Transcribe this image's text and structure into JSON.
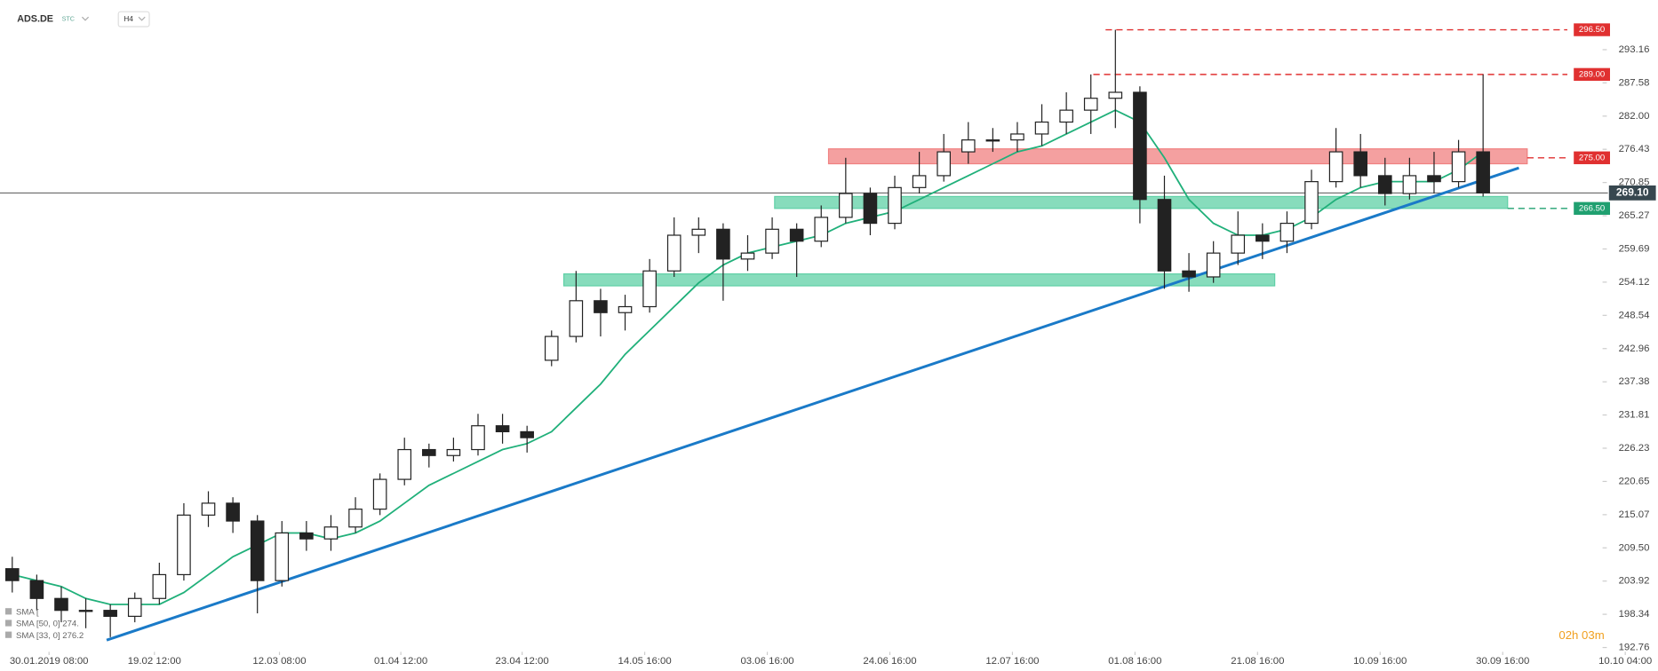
{
  "chart_data": {
    "type": "candlestick",
    "symbol": "ADS.DE",
    "market": "STC",
    "interval": "H4",
    "timer": "02h 03m",
    "indicators": [
      "SMA [",
      "SMA [50, 0] 274.",
      "SMA [33, 0] 276.2"
    ],
    "ylim": [
      191.5,
      301.5
    ],
    "xlim": [
      -0.5,
      66.7
    ],
    "yticks": [
      293.16,
      287.58,
      {
        "value": 282.0,
        "label": "282.00"
      },
      276.43,
      270.85,
      265.27,
      259.69,
      254.12,
      248.54,
      242.96,
      237.38,
      231.81,
      226.23,
      220.65,
      215.07,
      {
        "value": 209.5,
        "label": "209.50"
      },
      203.92,
      198.34,
      192.76
    ],
    "xticks": [
      {
        "value": 1.5,
        "label": "30.01.2019  08:00"
      },
      {
        "value": 5.8,
        "label": "19.02  12:00"
      },
      {
        "value": 10.9,
        "label": "12.03  08:00"
      },
      {
        "value": 15.85,
        "label": "01.04  12:00"
      },
      {
        "value": 20.8,
        "label": "23.04  12:00"
      },
      {
        "value": 25.8,
        "label": "14.05  16:00"
      },
      {
        "value": 30.8,
        "label": "03.06  16:00"
      },
      {
        "value": 35.8,
        "label": "24.06  16:00"
      },
      {
        "value": 40.8,
        "label": "12.07  16:00"
      },
      {
        "value": 45.8,
        "label": "01.08  16:00"
      },
      {
        "value": 50.8,
        "label": "21.08  16:00"
      },
      {
        "value": 55.8,
        "label": "10.09  16:00"
      },
      {
        "value": 60.8,
        "label": "30.09  16:00"
      },
      {
        "value": 65.8,
        "label": "10.10  04:00"
      }
    ],
    "candles": [
      [
        206,
        208,
        202,
        204
      ],
      [
        204,
        205,
        199,
        201
      ],
      [
        201,
        203,
        197,
        199
      ],
      [
        199,
        201,
        196,
        199
      ],
      [
        199,
        200,
        194.5,
        198
      ],
      [
        198,
        202,
        197,
        201
      ],
      [
        201,
        207,
        200,
        205
      ],
      [
        205,
        217,
        204,
        215
      ],
      [
        215,
        219,
        213,
        217
      ],
      [
        217,
        218,
        212,
        214
      ],
      [
        214,
        215,
        198.5,
        204
      ],
      [
        204,
        214,
        203,
        212
      ],
      [
        212,
        214,
        209,
        211
      ],
      [
        211,
        215,
        209,
        213
      ],
      [
        213,
        218,
        212,
        216
      ],
      [
        216,
        222,
        215,
        221
      ],
      [
        221,
        228,
        220,
        226
      ],
      [
        226,
        227,
        223,
        225
      ],
      [
        225,
        228,
        224,
        226
      ],
      [
        226,
        232,
        225,
        230
      ],
      [
        230,
        232,
        227,
        229
      ],
      [
        229,
        230,
        225.5,
        228
      ],
      [
        241,
        246,
        240,
        245
      ],
      [
        245,
        256,
        244,
        251
      ],
      [
        251,
        253,
        245,
        249
      ],
      [
        249,
        252,
        246,
        250
      ],
      [
        250,
        258,
        249,
        256
      ],
      [
        256,
        265,
        255,
        262
      ],
      [
        262,
        265,
        259,
        263
      ],
      [
        263,
        264,
        251,
        258
      ],
      [
        258,
        262,
        256,
        259
      ],
      [
        259,
        265,
        258,
        263
      ],
      [
        263,
        264,
        255,
        261
      ],
      [
        261,
        267,
        260,
        265
      ],
      [
        265,
        275,
        264,
        269
      ],
      [
        269,
        270,
        262,
        264
      ],
      [
        264,
        272,
        263,
        270
      ],
      [
        270,
        276,
        269,
        272
      ],
      [
        272,
        279,
        271,
        276
      ],
      [
        276,
        281,
        274,
        278
      ],
      [
        278,
        280,
        276,
        278
      ],
      [
        278,
        281,
        276,
        279
      ],
      [
        279,
        284,
        277,
        281
      ],
      [
        281,
        286,
        279,
        283
      ],
      [
        283,
        289,
        279,
        285
      ],
      [
        285,
        296.5,
        280,
        286
      ],
      [
        286,
        287,
        264,
        268
      ],
      [
        268,
        272,
        253,
        256
      ],
      [
        256,
        259,
        252.5,
        255
      ],
      [
        255,
        261,
        254,
        259
      ],
      [
        259,
        266,
        257,
        262
      ],
      [
        262,
        264,
        258,
        261
      ],
      [
        261,
        266,
        259,
        264
      ],
      [
        264,
        273,
        263,
        271
      ],
      [
        271,
        280,
        270,
        276
      ],
      [
        276,
        279,
        270,
        272
      ],
      [
        272,
        275,
        267,
        269
      ],
      [
        269,
        275,
        268,
        272
      ],
      [
        272,
        276,
        269,
        271
      ],
      [
        271,
        278,
        270,
        276
      ],
      [
        276,
        289,
        268.5,
        269.1
      ]
    ],
    "sma": {
      "color": "#20b07a",
      "values": [
        205,
        204,
        203,
        201,
        200,
        200,
        200,
        202,
        205,
        208,
        210,
        212,
        212,
        211,
        212,
        214,
        217,
        220,
        222,
        224,
        226,
        227,
        229,
        233,
        237,
        242,
        246,
        250,
        254,
        257,
        259,
        260,
        261,
        262,
        264,
        265,
        266,
        268,
        270,
        272,
        274,
        276,
        277,
        279,
        281,
        283,
        281,
        275,
        268,
        264,
        262,
        262,
        263,
        265,
        268,
        270,
        271,
        271,
        271,
        273,
        276
      ]
    },
    "trendline": {
      "color": "#1a7ac8",
      "x": [
        3.85,
        61.46
      ],
      "values": [
        194.0,
        273.3
      ]
    },
    "zones": [
      {
        "color": "#f08080",
        "x0": 33.3,
        "x1": 61.8,
        "y0": 274.0,
        "y1": 276.5
      },
      {
        "color": "#5fd0a6",
        "x0": 31.1,
        "x1": 61.0,
        "y0": 266.5,
        "y1": 268.5
      },
      {
        "color": "#5fd0a6",
        "x0": 22.5,
        "x1": 51.5,
        "y0": 253.5,
        "y1": 255.5
      }
    ],
    "levels": [
      {
        "value": 296.5,
        "label": "296.50",
        "color": "#e03030",
        "x_start": 44.6
      },
      {
        "value": 289.0,
        "label": "289.00",
        "color": "#e03030",
        "x_start": 44.1
      },
      {
        "value": 275.0,
        "label": "275.00",
        "color": "#e03030",
        "x_start": 61.8
      },
      {
        "value": 266.5,
        "label": "266.50",
        "color": "#20a070",
        "x_start": 61.0
      }
    ],
    "last_price": {
      "value": 269.1,
      "label": "269.10"
    }
  }
}
